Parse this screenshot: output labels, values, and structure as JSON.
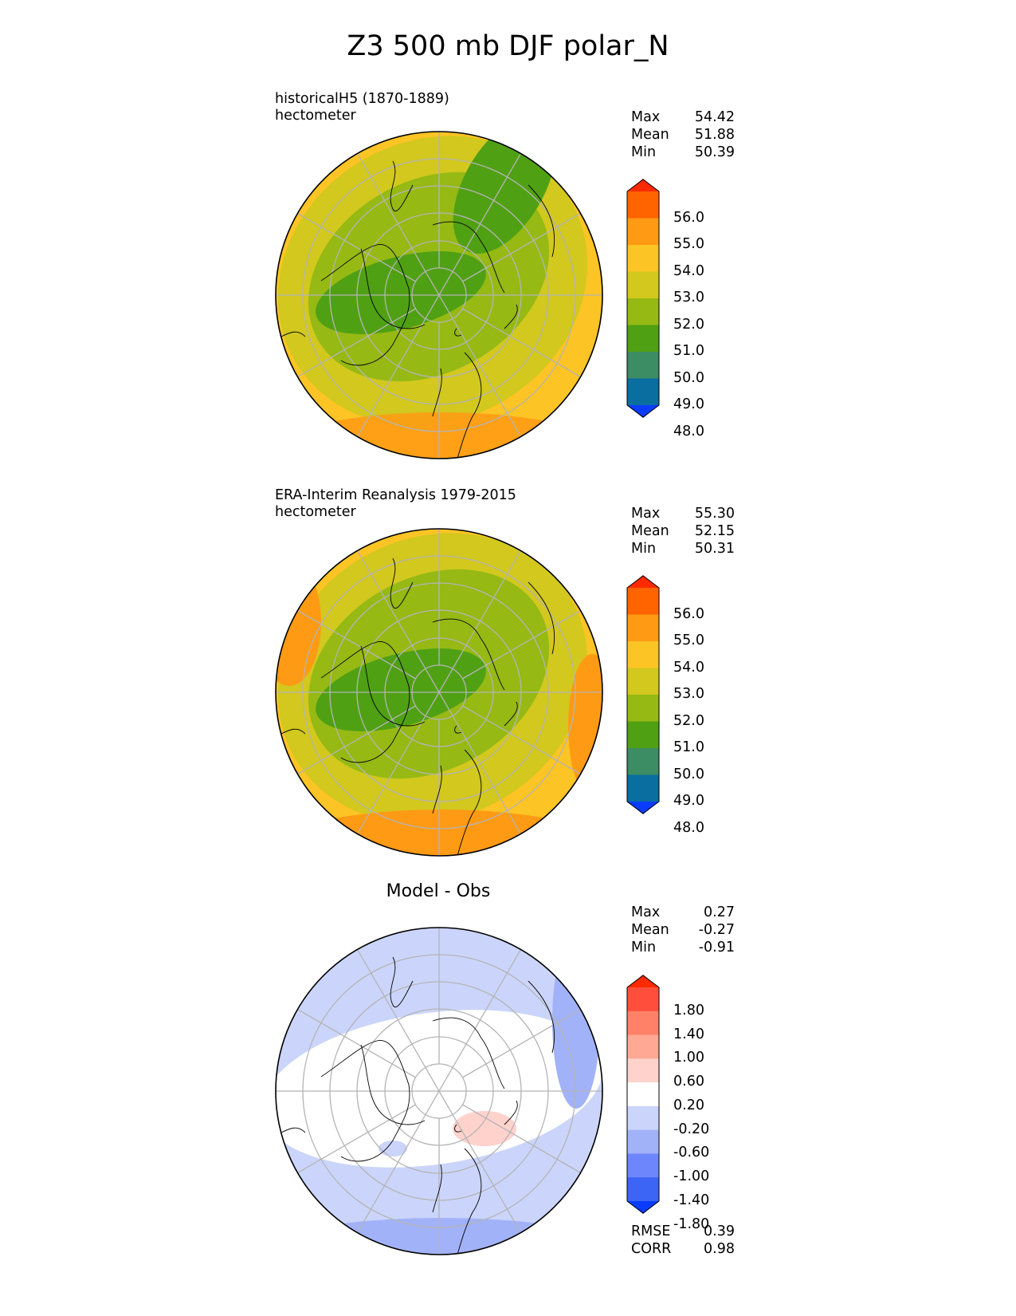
{
  "title": "Z3 500 mb DJF polar_N",
  "panels": [
    {
      "subtitle": "historicalH5 (1870-1889)\nhectometer",
      "center_title": "",
      "stats": {
        "max_label": "Max",
        "max": "54.42",
        "mean_label": "Mean",
        "mean": "51.88",
        "min_label": "Min",
        "min": "50.39"
      },
      "cbar_labels": [
        "56.0",
        "55.0",
        "54.0",
        "53.0",
        "52.0",
        "51.0",
        "50.0",
        "49.0",
        "48.0"
      ],
      "cbar_colors": [
        "#ff2a00",
        "#ff6400",
        "#ff9a14",
        "#fcc424",
        "#d2c81e",
        "#96b914",
        "#50a014",
        "#3c8c64",
        "#0a6ea0",
        "#0a3cff"
      ],
      "field_colors": [
        "#50a014",
        "#96b914",
        "#d2c81e",
        "#fcc424",
        "#ff9a14"
      ]
    },
    {
      "subtitle": "ERA-Interim Reanalysis 1979-2015\nhectometer",
      "center_title": "",
      "stats": {
        "max_label": "Max",
        "max": "55.30",
        "mean_label": "Mean",
        "mean": "52.15",
        "min_label": "Min",
        "min": "50.31"
      },
      "cbar_labels": [
        "56.0",
        "55.0",
        "54.0",
        "53.0",
        "52.0",
        "51.0",
        "50.0",
        "49.0",
        "48.0"
      ],
      "cbar_colors": [
        "#ff2a00",
        "#ff6400",
        "#ff9a14",
        "#fcc424",
        "#d2c81e",
        "#96b914",
        "#50a014",
        "#3c8c64",
        "#0a6ea0",
        "#0a3cff"
      ],
      "field_colors": [
        "#50a014",
        "#96b914",
        "#d2c81e",
        "#fcc424",
        "#ff9a14"
      ]
    },
    {
      "subtitle": "",
      "center_title": "Model - Obs",
      "stats": {
        "max_label": "Max",
        "max": "0.27",
        "mean_label": "Mean",
        "mean": "-0.27",
        "min_label": "Min",
        "min": "-0.91"
      },
      "cbar_labels": [
        "1.80",
        "1.40",
        "1.00",
        "0.60",
        "0.20",
        "-0.20",
        "-0.60",
        "-1.00",
        "-1.40",
        "-1.80"
      ],
      "cbar_colors": [
        "#ff2a00",
        "#ff4f3c",
        "#ff8268",
        "#ffa894",
        "#ffd2cc",
        "#ffffff",
        "#cbd5fb",
        "#a2b2f8",
        "#6e86fb",
        "#3c64f5",
        "#0a3cff"
      ],
      "field_colors": [
        "#ffffff",
        "#cbd5fb",
        "#a2b2f8"
      ],
      "footer": {
        "rmse_label": "RMSE",
        "rmse": "0.39",
        "corr_label": "CORR",
        "corr": "0.98"
      }
    }
  ]
}
